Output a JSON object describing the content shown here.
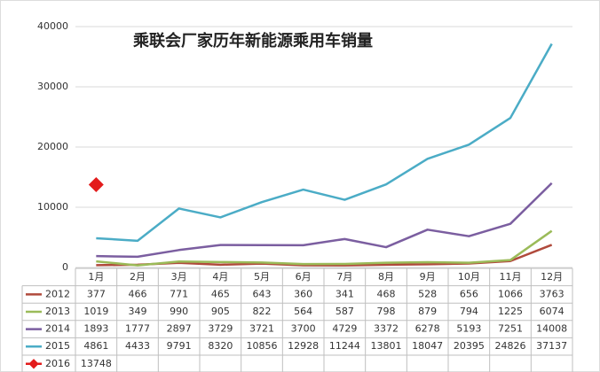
{
  "chart_data": {
    "type": "line",
    "title": "乘联会厂家历年新能源乘用车销量",
    "categories": [
      "1月",
      "2月",
      "3月",
      "4月",
      "5月",
      "6月",
      "7月",
      "8月",
      "9月",
      "10月",
      "11月",
      "12月"
    ],
    "ylim": [
      0,
      40000
    ],
    "yticks": [
      0,
      10000,
      20000,
      30000,
      40000
    ],
    "grid": true,
    "series": [
      {
        "name": "2012",
        "color": "#b04a3c",
        "values": [
          377,
          466,
          771,
          465,
          643,
          360,
          341,
          468,
          528,
          656,
          1066,
          3763
        ]
      },
      {
        "name": "2013",
        "color": "#9bbb59",
        "values": [
          1019,
          349,
          990,
          905,
          822,
          564,
          587,
          798,
          879,
          794,
          1225,
          6074
        ]
      },
      {
        "name": "2014",
        "color": "#7b5ea0",
        "values": [
          1893,
          1777,
          2897,
          3729,
          3721,
          3700,
          4729,
          3372,
          6278,
          5193,
          7251,
          14008
        ]
      },
      {
        "name": "2015",
        "color": "#4bacc6",
        "values": [
          4861,
          4433,
          9791,
          8320,
          10856,
          12928,
          11244,
          13801,
          18047,
          20395,
          24826,
          37137
        ]
      },
      {
        "name": "2016",
        "color": "#e31c1c",
        "marker": "diamond",
        "values": [
          13748,
          null,
          null,
          null,
          null,
          null,
          null,
          null,
          null,
          null,
          null,
          null
        ]
      }
    ]
  }
}
